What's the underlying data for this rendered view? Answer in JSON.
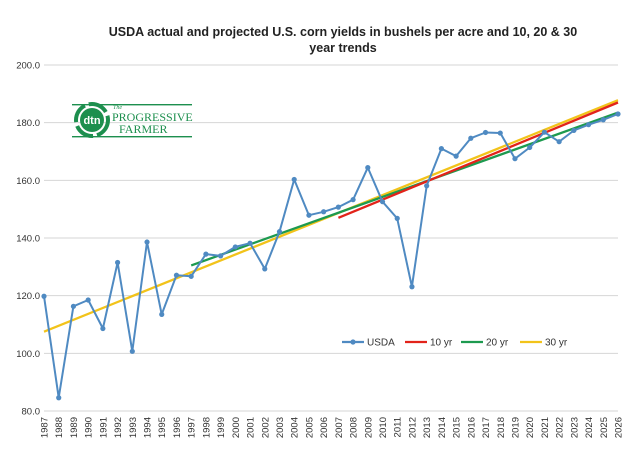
{
  "chart_data": {
    "type": "line",
    "title": "USDA actual and projected U.S. corn yields in bushels per acre and 10, 20 & 30 year trends",
    "title_lines": [
      "USDA actual and projected U.S. corn yields in bushels per acre and 10, 20 & 30",
      "year trends"
    ],
    "xlabel": "",
    "ylabel": "",
    "ylim": [
      80,
      200
    ],
    "yticks": [
      80,
      100,
      120,
      140,
      160,
      180,
      200
    ],
    "ytick_labels": [
      "80.0",
      "100.0",
      "120.0",
      "140.0",
      "160.0",
      "180.0",
      "200.0"
    ],
    "x": [
      1987,
      1988,
      1989,
      1990,
      1991,
      1992,
      1993,
      1994,
      1995,
      1996,
      1997,
      1998,
      1999,
      2000,
      2001,
      2002,
      2003,
      2004,
      2005,
      2006,
      2007,
      2008,
      2009,
      2010,
      2011,
      2012,
      2013,
      2014,
      2015,
      2016,
      2017,
      2018,
      2019,
      2020,
      2021,
      2022,
      2023,
      2024,
      2025,
      2026
    ],
    "grid": "horizontal",
    "legend_position": "bottom-right",
    "series": [
      {
        "name": "USDA",
        "color": "#4f8ac2",
        "markers": true,
        "x": [
          1987,
          1988,
          1989,
          1990,
          1991,
          1992,
          1993,
          1994,
          1995,
          1996,
          1997,
          1998,
          1999,
          2000,
          2001,
          2002,
          2003,
          2004,
          2005,
          2006,
          2007,
          2008,
          2009,
          2010,
          2011,
          2012,
          2013,
          2014,
          2015,
          2016,
          2017,
          2018,
          2019,
          2020,
          2021,
          2022,
          2023,
          2024,
          2025,
          2026
        ],
        "values": [
          119.8,
          84.6,
          116.3,
          118.5,
          108.6,
          131.5,
          100.7,
          138.6,
          113.5,
          127.1,
          126.7,
          134.4,
          133.8,
          136.9,
          138.2,
          129.3,
          142.2,
          160.3,
          147.9,
          149.1,
          150.7,
          153.3,
          164.4,
          152.6,
          146.8,
          123.1,
          158.1,
          171.0,
          168.4,
          174.6,
          176.6,
          176.4,
          167.5,
          171.4,
          176.7,
          173.4,
          177.3,
          179.3,
          181.0,
          183.0
        ]
      },
      {
        "name": "10 yr",
        "color": "#e2231a",
        "markers": false,
        "x": [
          2007,
          2026
        ],
        "values": [
          147.0,
          187.0
        ]
      },
      {
        "name": "20 yr",
        "color": "#1d9a4f",
        "markers": false,
        "x": [
          1997,
          2026
        ],
        "values": [
          130.5,
          183.5
        ]
      },
      {
        "name": "30 yr",
        "color": "#f2c31a",
        "markers": false,
        "x": [
          1987,
          2026
        ],
        "values": [
          107.5,
          187.8
        ]
      }
    ]
  },
  "logo": {
    "mark": "dtn",
    "line1": "The",
    "line2": "PROGRESSIVE",
    "line3": "FARMER",
    "color": "#1d8f4e"
  }
}
